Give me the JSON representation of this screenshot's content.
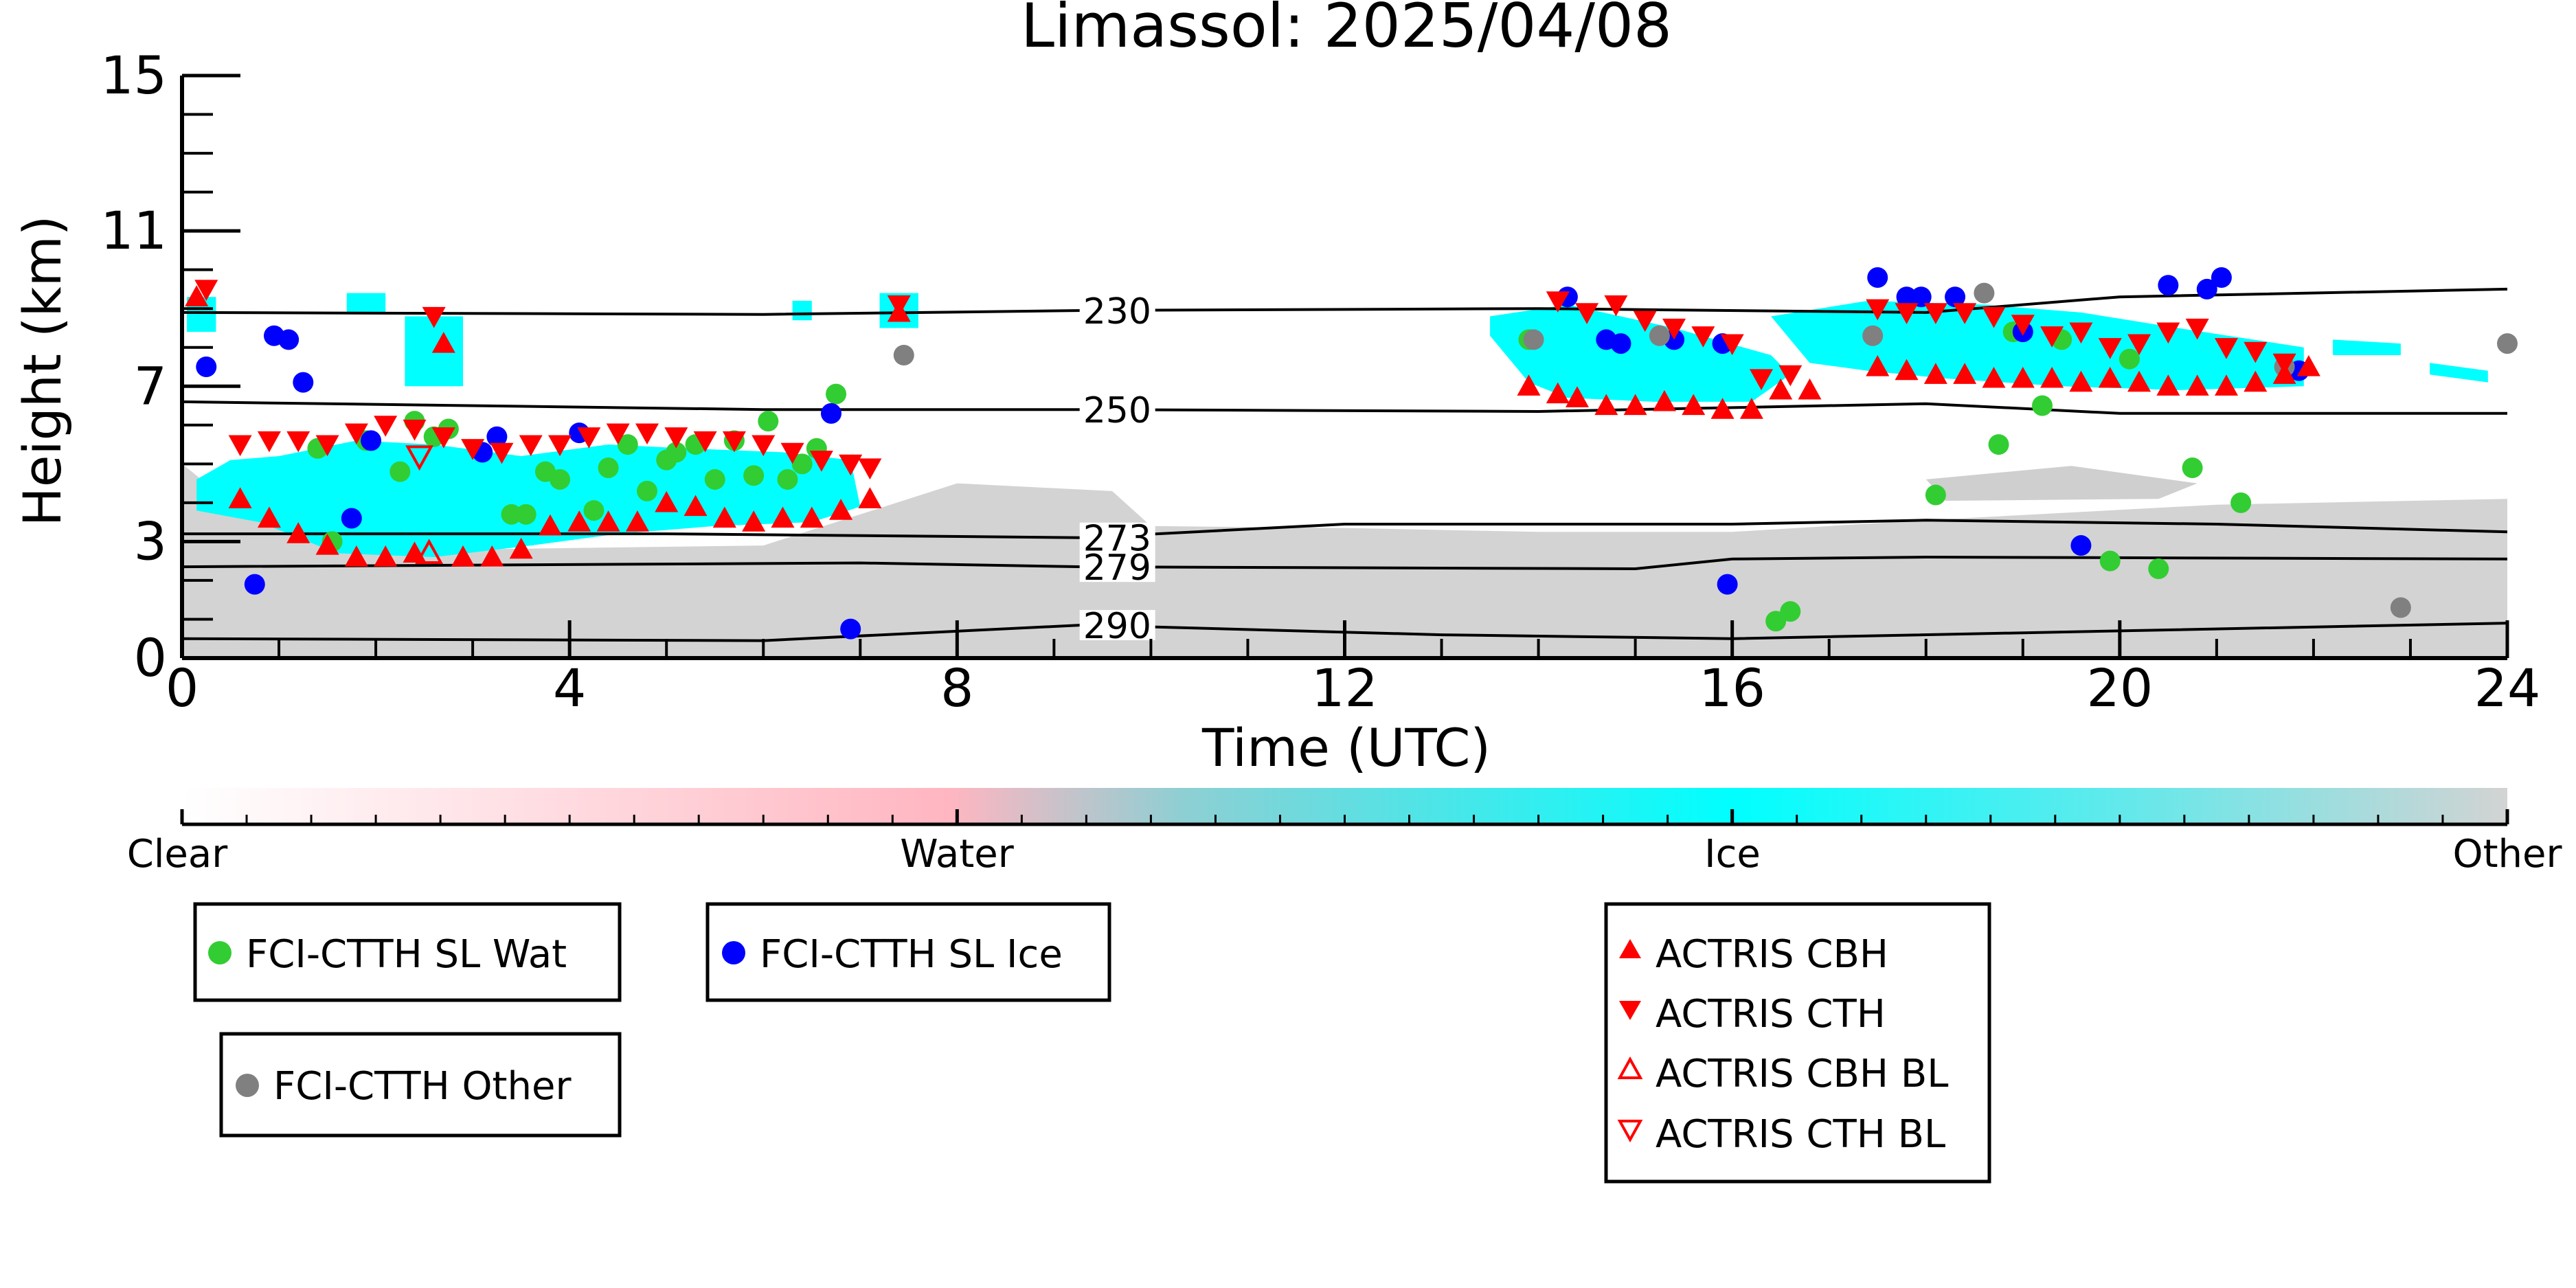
{
  "chart_data": {
    "type": "scatter",
    "title": "Limassol: 2025/04/08",
    "xlabel": "Time (UTC)",
    "ylabel": "Height (km)",
    "xlim": [
      0,
      24
    ],
    "ylim": [
      0,
      15
    ],
    "xticks": [
      0,
      4,
      8,
      12,
      16,
      20,
      24
    ],
    "yticks": [
      0,
      3,
      7,
      11,
      15
    ],
    "grid": false,
    "colorbar": {
      "labels": [
        "Clear",
        "Water",
        "Ice",
        "Other"
      ],
      "colors": [
        "#ffffff",
        "#ffb6c1",
        "#00ffff",
        "#d3d3d3"
      ]
    },
    "contours": [
      {
        "label": "230",
        "label_x": 9.3,
        "points": [
          [
            0,
            8.9
          ],
          [
            6,
            8.85
          ],
          [
            9.3,
            8.95
          ],
          [
            14,
            9.0
          ],
          [
            18,
            8.9
          ],
          [
            20,
            9.3
          ],
          [
            24,
            9.5
          ]
        ]
      },
      {
        "label": "250",
        "label_x": 9.3,
        "points": [
          [
            0,
            6.6
          ],
          [
            6,
            6.4
          ],
          [
            9.3,
            6.4
          ],
          [
            14,
            6.35
          ],
          [
            18,
            6.55
          ],
          [
            20,
            6.3
          ],
          [
            24,
            6.3
          ]
        ]
      },
      {
        "label": "273",
        "label_x": 9.3,
        "points": [
          [
            0,
            3.2
          ],
          [
            5,
            3.2
          ],
          [
            9.3,
            3.1
          ],
          [
            12,
            3.45
          ],
          [
            16,
            3.45
          ],
          [
            18,
            3.55
          ],
          [
            21,
            3.45
          ],
          [
            24,
            3.25
          ]
        ]
      },
      {
        "label": "279",
        "label_x": 9.3,
        "points": [
          [
            0,
            2.35
          ],
          [
            7,
            2.45
          ],
          [
            9.3,
            2.35
          ],
          [
            15,
            2.3
          ],
          [
            16,
            2.55
          ],
          [
            18,
            2.6
          ],
          [
            24,
            2.55
          ]
        ]
      },
      {
        "label": "290",
        "label_x": 9.3,
        "points": [
          [
            0,
            0.5
          ],
          [
            6,
            0.45
          ],
          [
            9.3,
            0.85
          ],
          [
            13,
            0.6
          ],
          [
            16,
            0.5
          ],
          [
            20,
            0.7
          ],
          [
            24,
            0.9
          ]
        ]
      }
    ],
    "series": [
      {
        "name": "FCI-CTTH SL Wat",
        "marker": "circle",
        "color": "#32cd32",
        "points": [
          [
            1.4,
            5.4
          ],
          [
            1.55,
            3.0
          ],
          [
            1.9,
            5.6
          ],
          [
            2.25,
            4.8
          ],
          [
            2.4,
            6.1
          ],
          [
            2.6,
            5.7
          ],
          [
            2.75,
            5.9
          ],
          [
            3.4,
            3.7
          ],
          [
            3.55,
            3.7
          ],
          [
            3.75,
            4.8
          ],
          [
            3.9,
            4.6
          ],
          [
            4.25,
            3.8
          ],
          [
            4.4,
            4.9
          ],
          [
            4.6,
            5.5
          ],
          [
            4.8,
            4.3
          ],
          [
            5.0,
            5.1
          ],
          [
            5.1,
            5.3
          ],
          [
            5.3,
            5.5
          ],
          [
            5.5,
            4.6
          ],
          [
            5.7,
            5.6
          ],
          [
            5.9,
            4.7
          ],
          [
            6.05,
            6.1
          ],
          [
            6.25,
            4.6
          ],
          [
            6.4,
            5.0
          ],
          [
            6.55,
            5.4
          ],
          [
            6.75,
            6.8
          ],
          [
            13.9,
            8.2
          ],
          [
            16.45,
            0.95
          ],
          [
            16.6,
            1.2
          ],
          [
            18.1,
            4.2
          ],
          [
            18.75,
            5.5
          ],
          [
            18.9,
            8.4
          ],
          [
            19.2,
            6.5
          ],
          [
            19.4,
            8.2
          ],
          [
            19.9,
            2.5
          ],
          [
            20.1,
            7.7
          ],
          [
            20.4,
            2.3
          ],
          [
            20.75,
            4.9
          ],
          [
            21.25,
            4.0
          ]
        ]
      },
      {
        "name": "FCI-CTTH SL Ice",
        "marker": "circle",
        "color": "#0000ff",
        "points": [
          [
            0.25,
            7.5
          ],
          [
            0.75,
            1.9
          ],
          [
            0.95,
            8.3
          ],
          [
            1.1,
            8.2
          ],
          [
            1.25,
            7.1
          ],
          [
            1.75,
            3.6
          ],
          [
            1.95,
            5.6
          ],
          [
            3.1,
            5.3
          ],
          [
            3.25,
            5.7
          ],
          [
            4.1,
            5.8
          ],
          [
            6.7,
            6.3
          ],
          [
            6.9,
            0.75
          ],
          [
            14.3,
            9.3
          ],
          [
            14.7,
            8.2
          ],
          [
            14.85,
            8.1
          ],
          [
            15.4,
            8.2
          ],
          [
            15.9,
            8.1
          ],
          [
            15.95,
            1.9
          ],
          [
            17.5,
            9.8
          ],
          [
            17.8,
            9.3
          ],
          [
            17.95,
            9.3
          ],
          [
            18.3,
            9.3
          ],
          [
            19.0,
            8.4
          ],
          [
            19.6,
            2.9
          ],
          [
            20.5,
            9.6
          ],
          [
            20.9,
            9.5
          ],
          [
            21.05,
            9.8
          ],
          [
            21.85,
            7.4
          ]
        ]
      },
      {
        "name": "FCI-CTTH Other",
        "marker": "circle",
        "color": "#808080",
        "points": [
          [
            7.45,
            7.8
          ],
          [
            13.95,
            8.2
          ],
          [
            15.25,
            8.3
          ],
          [
            17.45,
            8.3
          ],
          [
            18.6,
            9.4
          ],
          [
            21.7,
            7.5
          ],
          [
            22.9,
            1.3
          ],
          [
            24.0,
            8.1
          ]
        ]
      },
      {
        "name": "ACTRIS CBH",
        "marker": "triangle-up",
        "color": "#ff0000",
        "points": [
          [
            0.15,
            9.3
          ],
          [
            0.6,
            4.1
          ],
          [
            0.9,
            3.6
          ],
          [
            1.2,
            3.2
          ],
          [
            1.5,
            2.9
          ],
          [
            1.8,
            2.6
          ],
          [
            2.1,
            2.6
          ],
          [
            2.4,
            2.7
          ],
          [
            2.7,
            8.1
          ],
          [
            2.9,
            2.6
          ],
          [
            3.2,
            2.6
          ],
          [
            3.5,
            2.8
          ],
          [
            3.8,
            3.4
          ],
          [
            4.1,
            3.5
          ],
          [
            4.4,
            3.5
          ],
          [
            4.7,
            3.5
          ],
          [
            5.0,
            4.0
          ],
          [
            5.3,
            3.9
          ],
          [
            5.6,
            3.6
          ],
          [
            5.9,
            3.5
          ],
          [
            6.2,
            3.6
          ],
          [
            6.5,
            3.6
          ],
          [
            6.8,
            3.8
          ],
          [
            7.1,
            4.1
          ],
          [
            7.4,
            8.9
          ],
          [
            13.9,
            7.0
          ],
          [
            14.2,
            6.8
          ],
          [
            14.4,
            6.7
          ],
          [
            14.7,
            6.5
          ],
          [
            15.0,
            6.5
          ],
          [
            15.3,
            6.6
          ],
          [
            15.6,
            6.5
          ],
          [
            15.9,
            6.4
          ],
          [
            16.2,
            6.4
          ],
          [
            16.5,
            6.9
          ],
          [
            16.8,
            6.9
          ],
          [
            17.5,
            7.5
          ],
          [
            17.8,
            7.4
          ],
          [
            18.1,
            7.3
          ],
          [
            18.4,
            7.3
          ],
          [
            18.7,
            7.2
          ],
          [
            19.0,
            7.2
          ],
          [
            19.3,
            7.2
          ],
          [
            19.6,
            7.1
          ],
          [
            19.9,
            7.2
          ],
          [
            20.2,
            7.1
          ],
          [
            20.5,
            7.0
          ],
          [
            20.8,
            7.0
          ],
          [
            21.1,
            7.0
          ],
          [
            21.4,
            7.1
          ],
          [
            21.7,
            7.3
          ],
          [
            21.95,
            7.5
          ]
        ]
      },
      {
        "name": "ACTRIS CTH",
        "marker": "triangle-down",
        "color": "#ff0000",
        "points": [
          [
            0.25,
            9.5
          ],
          [
            0.6,
            5.5
          ],
          [
            0.9,
            5.6
          ],
          [
            1.2,
            5.6
          ],
          [
            1.5,
            5.5
          ],
          [
            1.8,
            5.8
          ],
          [
            2.1,
            6.0
          ],
          [
            2.4,
            5.9
          ],
          [
            2.6,
            8.8
          ],
          [
            2.7,
            5.7
          ],
          [
            3.0,
            5.4
          ],
          [
            3.3,
            5.3
          ],
          [
            3.6,
            5.5
          ],
          [
            3.9,
            5.5
          ],
          [
            4.2,
            5.7
          ],
          [
            4.5,
            5.8
          ],
          [
            4.8,
            5.8
          ],
          [
            5.1,
            5.7
          ],
          [
            5.4,
            5.6
          ],
          [
            5.7,
            5.6
          ],
          [
            6.0,
            5.5
          ],
          [
            6.3,
            5.3
          ],
          [
            6.6,
            5.1
          ],
          [
            6.9,
            5.0
          ],
          [
            7.1,
            4.9
          ],
          [
            7.4,
            9.1
          ],
          [
            14.2,
            9.2
          ],
          [
            14.5,
            8.9
          ],
          [
            14.8,
            9.1
          ],
          [
            15.1,
            8.7
          ],
          [
            15.4,
            8.5
          ],
          [
            15.7,
            8.3
          ],
          [
            16.0,
            8.1
          ],
          [
            16.3,
            7.2
          ],
          [
            16.6,
            7.3
          ],
          [
            17.5,
            9.0
          ],
          [
            17.8,
            8.9
          ],
          [
            18.1,
            8.9
          ],
          [
            18.4,
            8.9
          ],
          [
            18.7,
            8.8
          ],
          [
            19.0,
            8.6
          ],
          [
            19.3,
            8.3
          ],
          [
            19.6,
            8.4
          ],
          [
            19.9,
            8.0
          ],
          [
            20.2,
            8.1
          ],
          [
            20.5,
            8.4
          ],
          [
            20.8,
            8.5
          ],
          [
            21.1,
            8.0
          ],
          [
            21.4,
            7.9
          ],
          [
            21.7,
            7.6
          ]
        ]
      },
      {
        "name": "ACTRIS CBH BL",
        "marker": "triangle-up-open",
        "color": "#ff0000",
        "points": [
          [
            2.55,
            2.7
          ]
        ]
      },
      {
        "name": "ACTRIS CTH BL",
        "marker": "triangle-down-open",
        "color": "#ff0000",
        "points": [
          [
            2.45,
            5.2
          ]
        ]
      }
    ]
  }
}
